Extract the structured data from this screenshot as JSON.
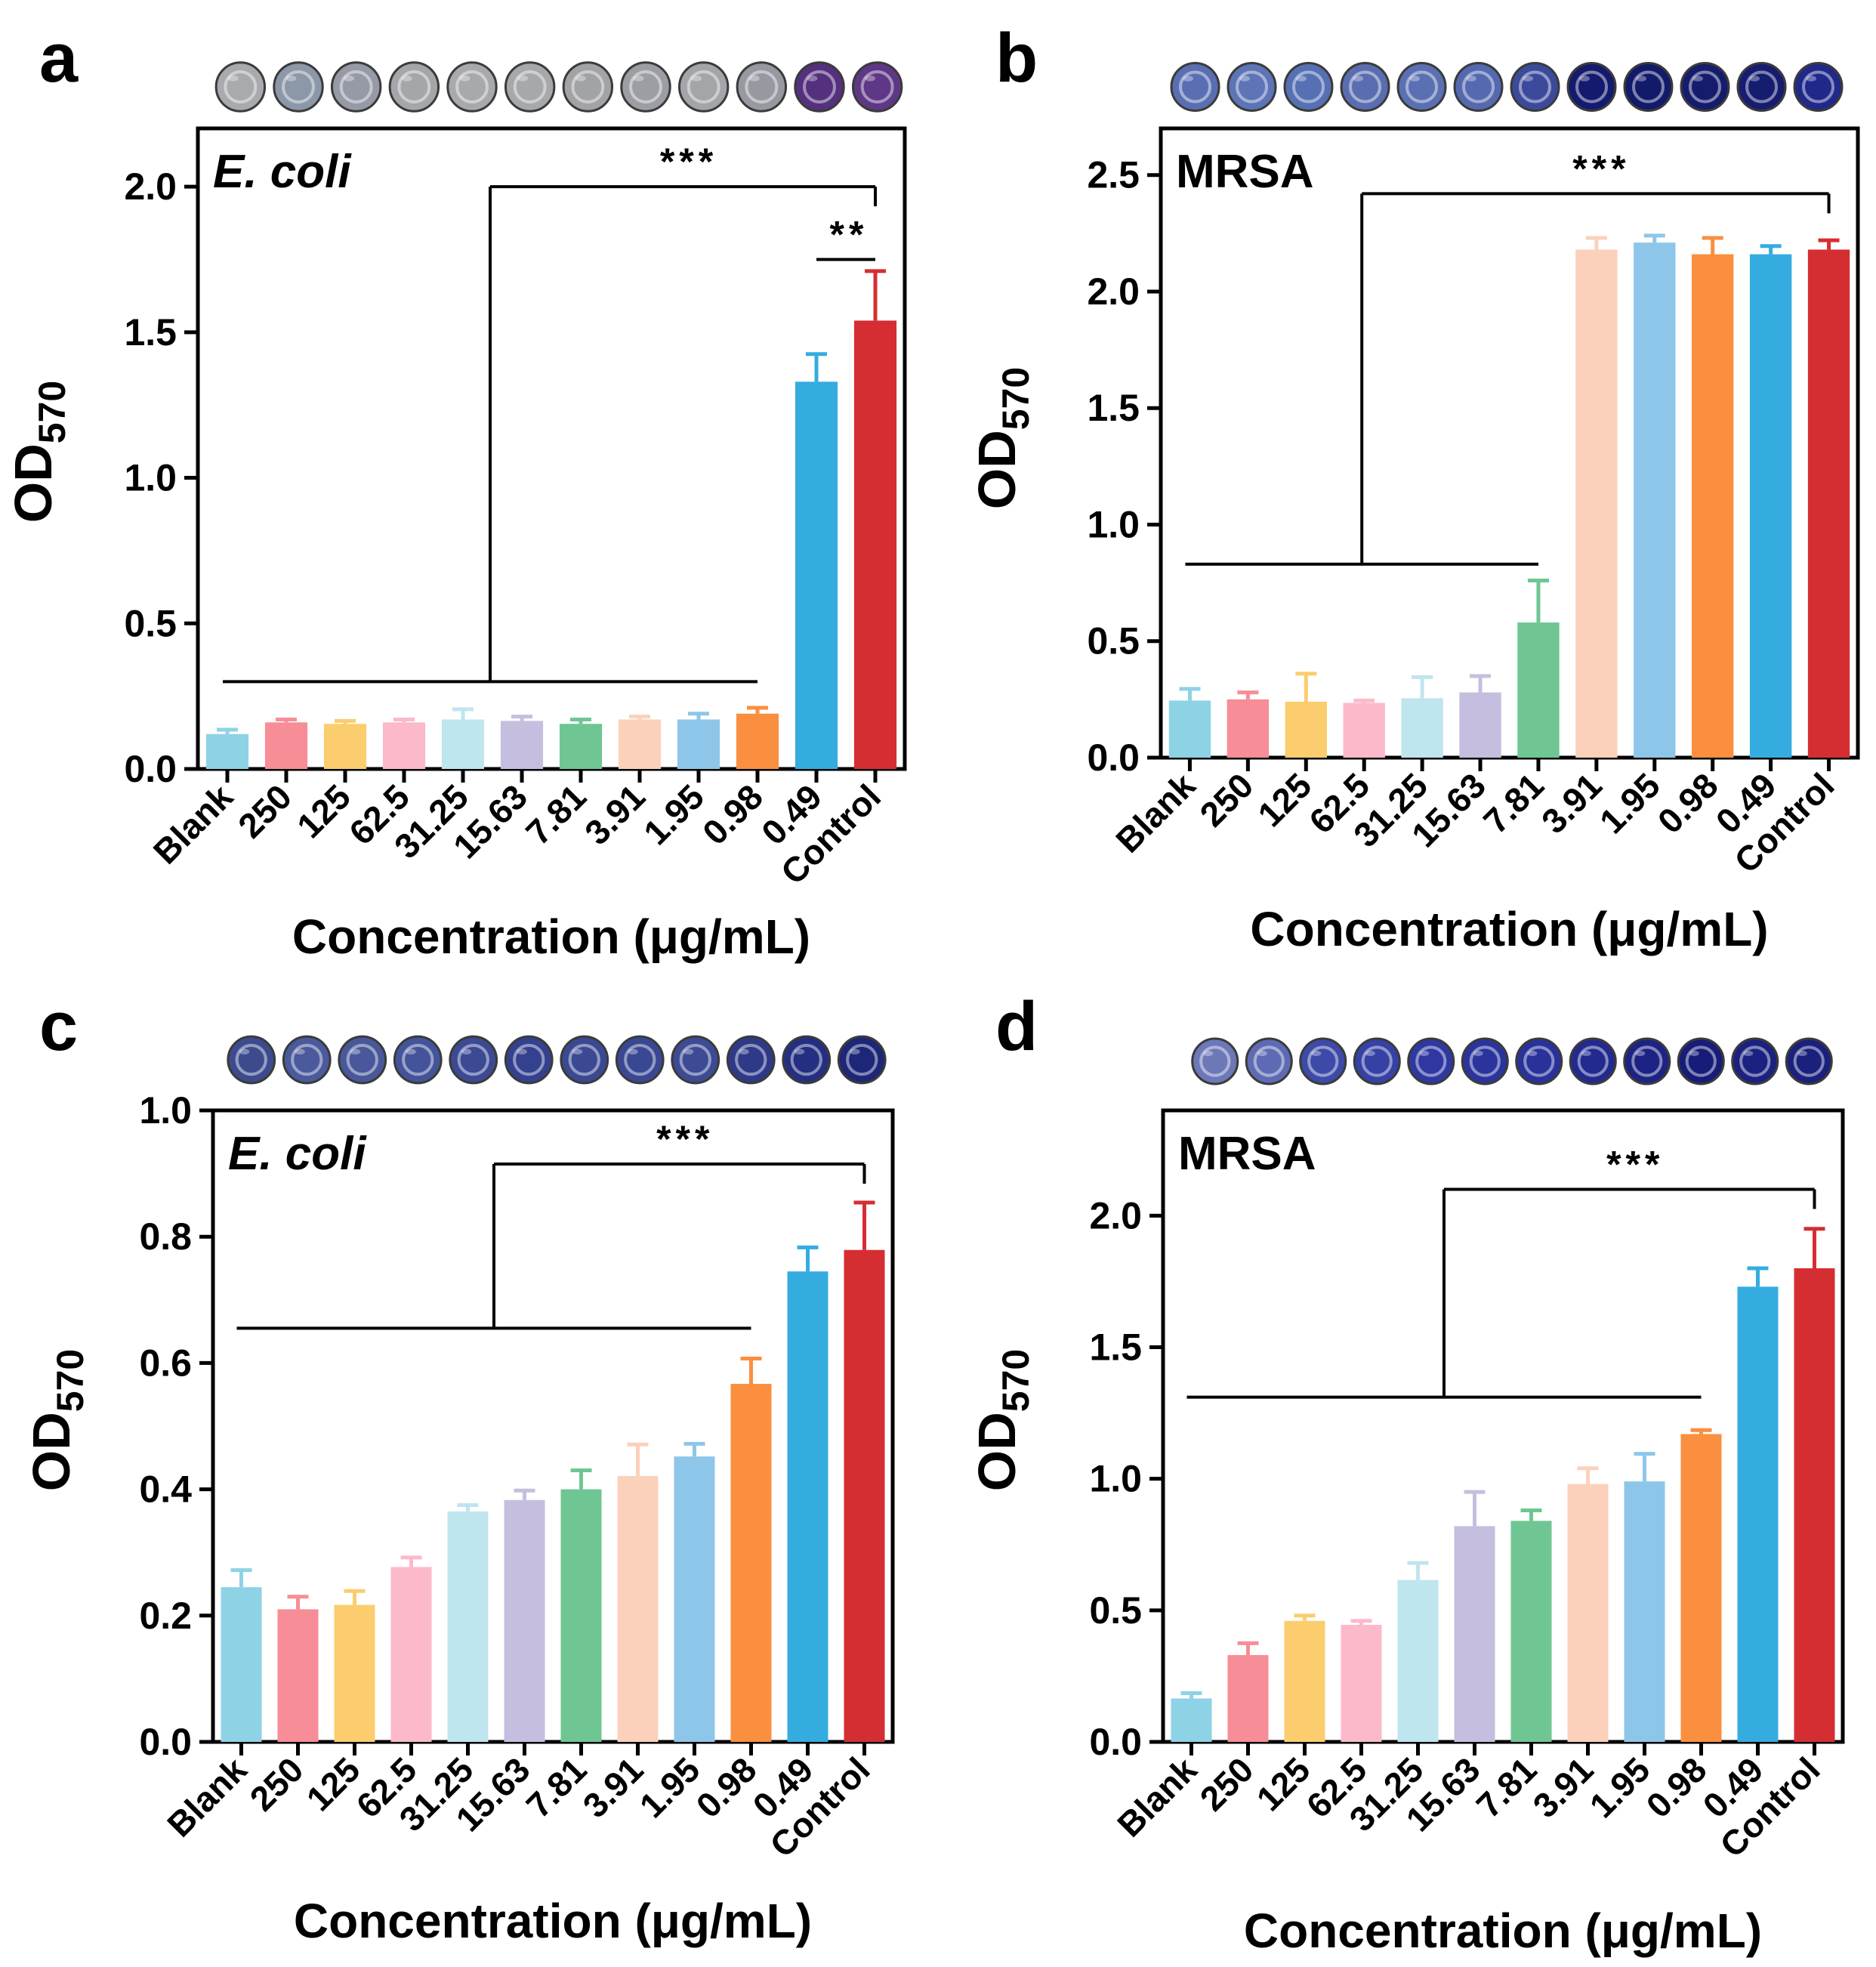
{
  "figure": {
    "xlabel": "Concentration (μg/mL)",
    "ylabel_main": "OD",
    "ylabel_sub": "570",
    "categories": [
      "Blank",
      "250",
      "125",
      "62.5",
      "31.25",
      "15.63",
      "7.81",
      "3.91",
      "1.95",
      "0.98",
      "0.49",
      "Control"
    ],
    "bar_colors": [
      "#8ed2e6",
      "#f78d96",
      "#fbcd6e",
      "#fcb9c9",
      "#bfe5ee",
      "#c5bedf",
      "#6fc693",
      "#fbd1bb",
      "#8ec6e9",
      "#fa8f40",
      "#35ace0",
      "#d52e32"
    ]
  },
  "chart_data": [
    {
      "type": "bar",
      "panel_label": "a",
      "organism": "E. coli",
      "organism_italic": true,
      "categories": [
        "Blank",
        "250",
        "125",
        "62.5",
        "31.25",
        "15.63",
        "7.81",
        "3.91",
        "1.95",
        "0.98",
        "0.49",
        "Control"
      ],
      "values": [
        0.12,
        0.16,
        0.155,
        0.16,
        0.17,
        0.165,
        0.155,
        0.17,
        0.17,
        0.19,
        1.33,
        1.54
      ],
      "errors": [
        0.015,
        0.01,
        0.01,
        0.01,
        0.035,
        0.015,
        0.015,
        0.01,
        0.02,
        0.02,
        0.095,
        0.17
      ],
      "ylim": [
        0,
        2.2
      ],
      "yticks": [
        0.0,
        0.5,
        1.0,
        1.5,
        2.0
      ],
      "ytick_labels": [
        "0.0",
        "0.5",
        "1.0",
        "1.5",
        "2.0"
      ],
      "xlabel": "Concentration (μg/mL)",
      "ylabel": "OD570",
      "well_colors": [
        "#a8aaae",
        "#8c97a8",
        "#969aa6",
        "#a4a6aa",
        "#a8a9ad",
        "#a7a8ab",
        "#a2a3a7",
        "#9c9ea4",
        "#a3a5a9",
        "#9699a0",
        "#55307e",
        "#5e3786"
      ],
      "significance": [
        {
          "label": "***",
          "group_from": 0,
          "group_to": 9,
          "target": 11,
          "level": 2.0
        },
        {
          "label": "**",
          "from": 10,
          "to": 11,
          "level": 1.75
        }
      ]
    },
    {
      "type": "bar",
      "panel_label": "b",
      "organism": "MRSA",
      "organism_italic": false,
      "categories": [
        "Blank",
        "250",
        "125",
        "62.5",
        "31.25",
        "15.63",
        "7.81",
        "3.91",
        "1.95",
        "0.98",
        "0.49",
        "Control"
      ],
      "values": [
        0.245,
        0.25,
        0.24,
        0.235,
        0.255,
        0.28,
        0.58,
        2.18,
        2.21,
        2.16,
        2.16,
        2.18
      ],
      "errors": [
        0.05,
        0.03,
        0.12,
        0.01,
        0.09,
        0.07,
        0.18,
        0.05,
        0.03,
        0.07,
        0.035,
        0.04
      ],
      "ylim": [
        0,
        2.7
      ],
      "yticks": [
        0.0,
        0.5,
        1.0,
        1.5,
        2.0,
        2.5
      ],
      "ytick_labels": [
        "0.0",
        "0.5",
        "1.0",
        "1.5",
        "2.0",
        "2.5"
      ],
      "xlabel": "Concentration (μg/mL)",
      "ylabel": "OD570",
      "well_colors": [
        "#5a6fb2",
        "#5d74b6",
        "#5670b4",
        "#5a6db0",
        "#5b70b3",
        "#5469af",
        "#3c4a9c",
        "#141b6e",
        "#131a6a",
        "#151c6e",
        "#161d70",
        "#20288a"
      ],
      "significance": [
        {
          "label": "***",
          "group_from": 0,
          "group_to": 6,
          "target": 11,
          "level": 2.42
        }
      ]
    },
    {
      "type": "bar",
      "panel_label": "c",
      "organism": "E. coli",
      "organism_italic": true,
      "categories": [
        "Blank",
        "250",
        "125",
        "62.5",
        "31.25",
        "15.63",
        "7.81",
        "3.91",
        "1.95",
        "0.98",
        "0.49",
        "Control"
      ],
      "values": [
        0.245,
        0.21,
        0.217,
        0.277,
        0.365,
        0.383,
        0.4,
        0.421,
        0.452,
        0.567,
        0.745,
        0.779
      ],
      "errors": [
        0.027,
        0.02,
        0.022,
        0.015,
        0.01,
        0.015,
        0.03,
        0.05,
        0.02,
        0.04,
        0.038,
        0.075
      ],
      "ylim": [
        0,
        1.0
      ],
      "yticks": [
        0.0,
        0.2,
        0.4,
        0.6,
        0.8,
        1.0
      ],
      "ytick_labels": [
        "0.0",
        "0.2",
        "0.4",
        "0.6",
        "0.8",
        "1.0"
      ],
      "xlabel": "Concentration (μg/mL)",
      "ylabel": "OD570",
      "well_colors": [
        "#3d4b8e",
        "#4a5a9c",
        "#48589a",
        "#44549a",
        "#3c4a94",
        "#34418e",
        "#3b4993",
        "#3a4893",
        "#3d4b94",
        "#2e3a88",
        "#242f82",
        "#1d2677"
      ],
      "significance": [
        {
          "label": "***",
          "group_from": 0,
          "group_to": 9,
          "target": 11,
          "level": 0.915
        }
      ]
    },
    {
      "type": "bar",
      "panel_label": "d",
      "organism": "MRSA",
      "organism_italic": false,
      "categories": [
        "Blank",
        "250",
        "125",
        "62.5",
        "31.25",
        "15.63",
        "7.81",
        "3.91",
        "1.95",
        "0.98",
        "0.49",
        "Control"
      ],
      "values": [
        0.165,
        0.33,
        0.46,
        0.445,
        0.615,
        0.82,
        0.84,
        0.98,
        0.99,
        1.17,
        1.73,
        1.8
      ],
      "errors": [
        0.02,
        0.045,
        0.02,
        0.015,
        0.065,
        0.13,
        0.04,
        0.06,
        0.105,
        0.015,
        0.07,
        0.15
      ],
      "ylim": [
        0,
        2.4
      ],
      "yticks": [
        0.0,
        0.5,
        1.0,
        1.5,
        2.0
      ],
      "ytick_labels": [
        "0.0",
        "0.5",
        "1.0",
        "1.5",
        "2.0"
      ],
      "xlabel": "Concentration (μg/mL)",
      "ylabel": "OD570",
      "well_colors": [
        "#6d78b8",
        "#5e6bb4",
        "#3d4aa8",
        "#3541a4",
        "#2e38a0",
        "#2a349c",
        "#28329a",
        "#222a90",
        "#1c2384",
        "#161c78",
        "#1b2180",
        "#1a207c"
      ],
      "significance": [
        {
          "label": "***",
          "group_from": 0,
          "group_to": 9,
          "target": 11,
          "level": 2.1
        }
      ]
    }
  ]
}
